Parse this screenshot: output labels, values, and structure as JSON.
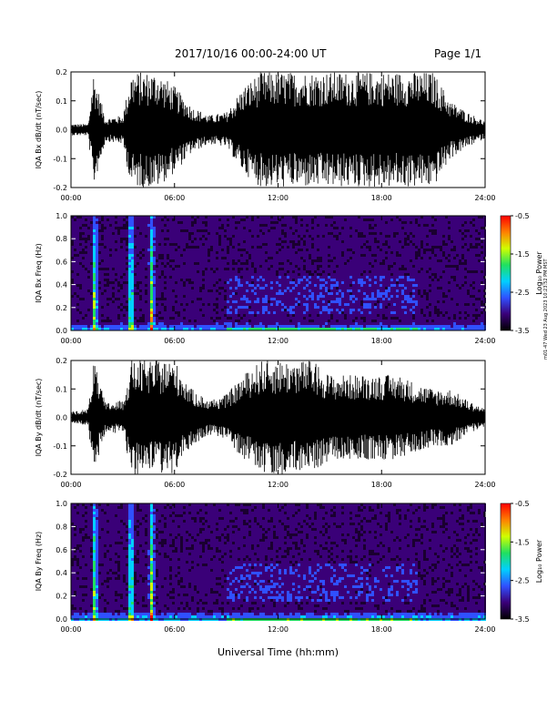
{
  "header": {
    "title": "2017/10/16  00:00-24:00 UT",
    "page": "Page 1/1"
  },
  "side_stamp": "m01-47 Wed 23 Aug 2023 10:23:52 PM MST",
  "colors": {
    "waveform": "#000000",
    "spectrogram_background": "#1a0030",
    "colorbar": [
      "#000000",
      "#3a0078",
      "#3050ff",
      "#00d0ff",
      "#20e060",
      "#d0ff00",
      "#ff8000",
      "#ff0000"
    ]
  },
  "chart_data": [
    {
      "type": "line",
      "name": "panel-bx-waveform",
      "title": "",
      "xlabel": "",
      "ylabel": "IQA Bx dB/dt (nT/sec)",
      "xlim": [
        "00:00",
        "24:00"
      ],
      "ylim": [
        -0.2,
        0.2
      ],
      "x_ticks": [
        "00:00",
        "06:00",
        "12:00",
        "18:00",
        "24:00"
      ],
      "y_ticks": [
        "-0.2",
        "-0.1",
        "0.0",
        "0.1",
        "0.2"
      ],
      "envelope_hours": [
        0,
        1,
        1.3,
        2,
        3,
        3.5,
        4,
        4.5,
        5,
        6,
        7,
        8,
        9,
        10,
        11,
        12,
        13,
        14,
        15,
        16,
        17,
        18,
        19,
        20,
        21,
        22,
        23,
        24
      ],
      "envelope_amp": [
        0.02,
        0.02,
        0.2,
        0.04,
        0.05,
        0.2,
        0.2,
        0.2,
        0.2,
        0.15,
        0.08,
        0.05,
        0.06,
        0.15,
        0.2,
        0.2,
        0.2,
        0.2,
        0.2,
        0.2,
        0.2,
        0.2,
        0.2,
        0.2,
        0.2,
        0.1,
        0.06,
        0.03
      ]
    },
    {
      "type": "heatmap",
      "name": "panel-bx-spectrogram",
      "xlabel": "",
      "ylabel": "IQA Bx Freq (Hz)",
      "xlim": [
        "00:00",
        "24:00"
      ],
      "ylim": [
        0,
        1.0
      ],
      "x_ticks": [
        "00:00",
        "06:00",
        "12:00",
        "18:00",
        "24:00"
      ],
      "y_ticks": [
        "0.0",
        "0.2",
        "0.4",
        "0.6",
        "0.8",
        "1.0"
      ],
      "colorbar_label": "Log₁₀ Power",
      "colorbar_ticks": [
        "-0.5",
        "-1.5",
        "-2.5",
        "-3.5"
      ],
      "colorbar_range": [
        -3.5,
        -0.5
      ]
    },
    {
      "type": "line",
      "name": "panel-by-waveform",
      "title": "",
      "xlabel": "",
      "ylabel": "IQA By dB/dt (nT/sec)",
      "xlim": [
        "00:00",
        "24:00"
      ],
      "ylim": [
        -0.2,
        0.2
      ],
      "x_ticks": [
        "00:00",
        "06:00",
        "12:00",
        "18:00",
        "24:00"
      ],
      "y_ticks": [
        "-0.2",
        "-0.1",
        "0.0",
        "0.1",
        "0.2"
      ],
      "envelope_hours": [
        0,
        1,
        1.3,
        2,
        3,
        3.5,
        4,
        4.5,
        5,
        6,
        7,
        8,
        9,
        10,
        11,
        12,
        13,
        14,
        15,
        16,
        17,
        18,
        19,
        20,
        21,
        22,
        23,
        24
      ],
      "envelope_amp": [
        0.02,
        0.03,
        0.2,
        0.05,
        0.06,
        0.2,
        0.2,
        0.2,
        0.2,
        0.2,
        0.1,
        0.06,
        0.08,
        0.15,
        0.2,
        0.2,
        0.2,
        0.2,
        0.15,
        0.15,
        0.15,
        0.15,
        0.15,
        0.12,
        0.1,
        0.1,
        0.06,
        0.03
      ]
    },
    {
      "type": "heatmap",
      "name": "panel-by-spectrogram",
      "xlabel": "Universal Time (hh:mm)",
      "ylabel": "IQA By Freq (Hz)",
      "xlim": [
        "00:00",
        "24:00"
      ],
      "ylim": [
        0,
        1.0
      ],
      "x_ticks": [
        "00:00",
        "06:00",
        "12:00",
        "18:00",
        "24:00"
      ],
      "y_ticks": [
        "0.0",
        "0.2",
        "0.4",
        "0.6",
        "0.8",
        "1.0"
      ],
      "colorbar_label": "Log₁₀ Power",
      "colorbar_ticks": [
        "-0.5",
        "-1.5",
        "-2.5",
        "-3.5"
      ],
      "colorbar_range": [
        -3.5,
        -0.5
      ]
    }
  ]
}
